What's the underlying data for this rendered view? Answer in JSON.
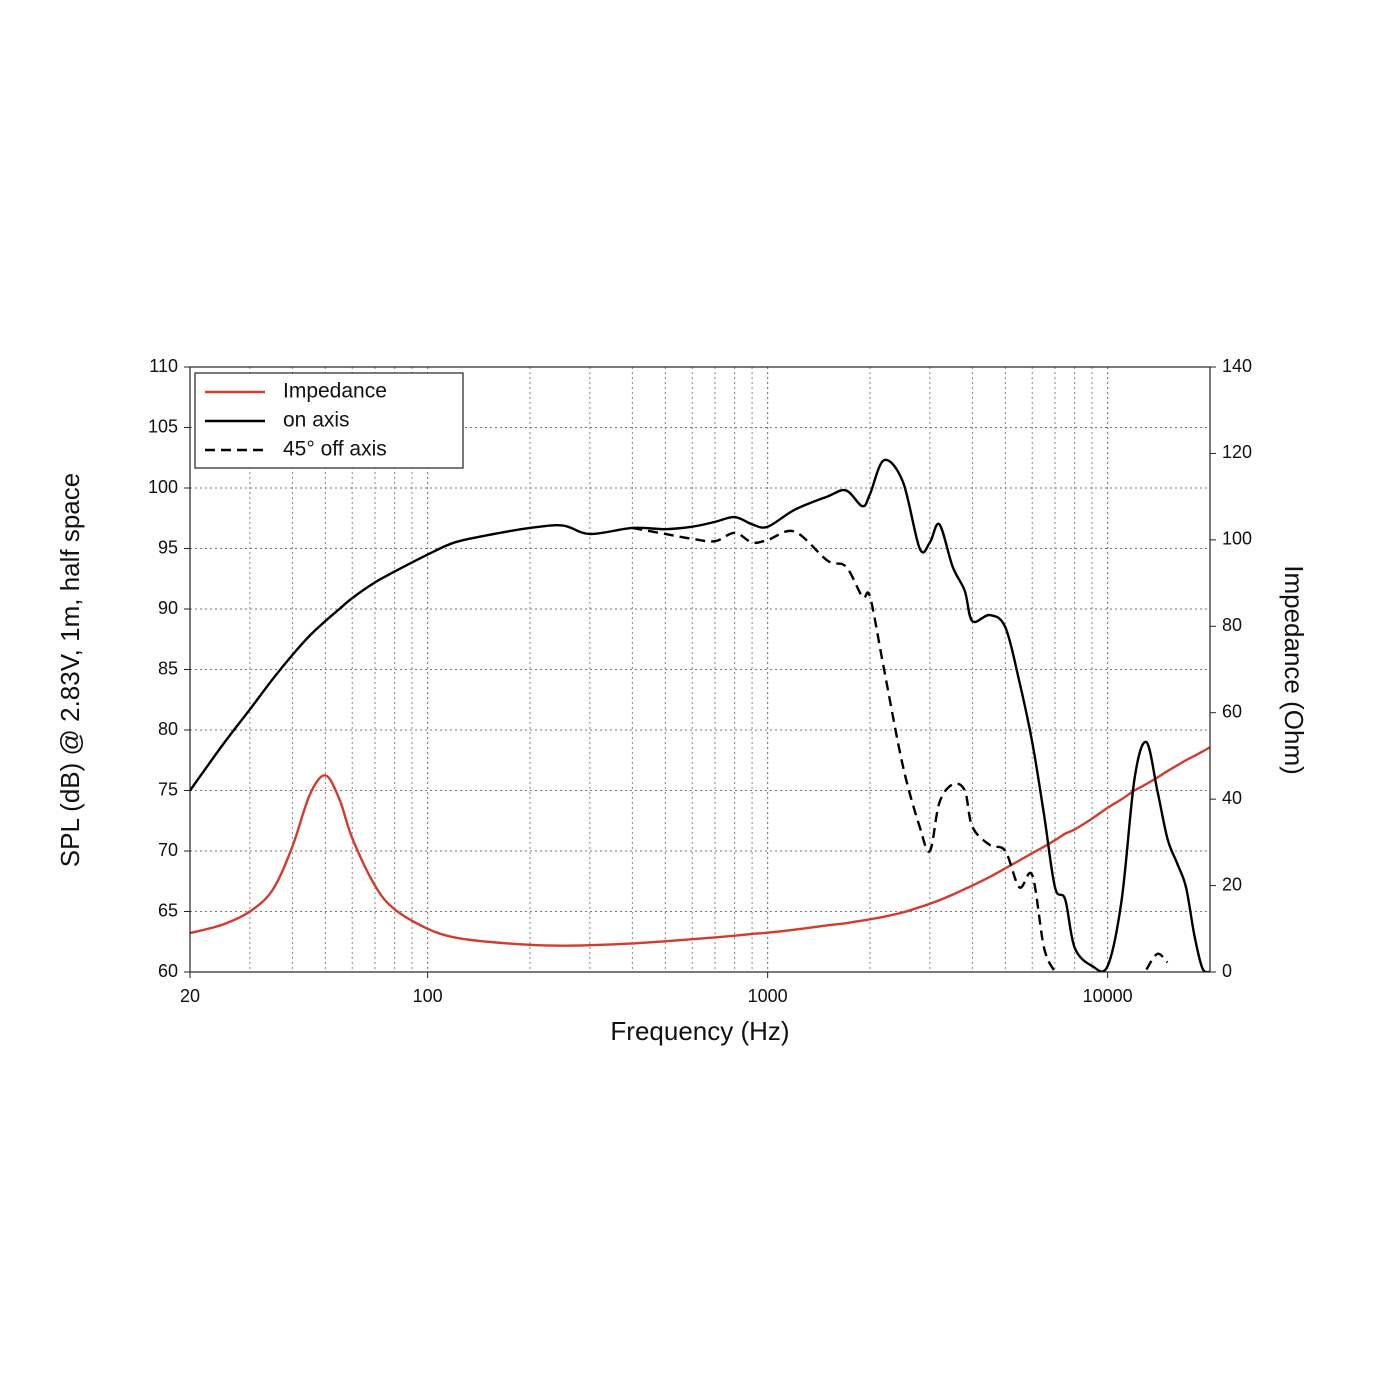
{
  "chart_data": {
    "type": "line",
    "xlabel": "Frequency (Hz)",
    "ylabel": "SPL (dB) @ 2.83V, 1m, half space",
    "y2label": "Impedance (Ohm)",
    "xscale": "log",
    "xlim": [
      20,
      20000
    ],
    "xticks": [
      20,
      100,
      1000,
      10000
    ],
    "ylim": [
      60,
      110
    ],
    "yticks": [
      60,
      65,
      70,
      75,
      80,
      85,
      90,
      95,
      100,
      105,
      110
    ],
    "y2lim": [
      0,
      140
    ],
    "y2ticks": [
      0,
      20,
      40,
      60,
      80,
      100,
      120,
      140
    ],
    "grid": true,
    "minor_grid": true,
    "legend": "upper left",
    "x": [
      20,
      25,
      30,
      35,
      40,
      45,
      50,
      55,
      60,
      70,
      80,
      100,
      120,
      150,
      200,
      250,
      300,
      400,
      500,
      600,
      700,
      800,
      900,
      1000,
      1200,
      1500,
      1700,
      1900,
      2000,
      2200,
      2500,
      2800,
      3000,
      3200,
      3500,
      3800,
      4000,
      4500,
      5000,
      5500,
      6000,
      6500,
      7000,
      7500,
      8000,
      9000,
      10000,
      11000,
      12000,
      13000,
      14000,
      15000,
      16000,
      17000,
      18000,
      19000,
      20000
    ],
    "series": [
      {
        "name": "Impedance",
        "color": "#d23c2c",
        "style": "solid",
        "axis": "y2",
        "values": [
          9,
          11,
          14,
          19,
          29,
          41,
          45.5,
          40,
          31,
          20,
          14.5,
          10,
          8,
          7,
          6.3,
          6.1,
          6.2,
          6.6,
          7.1,
          7.6,
          8,
          8.4,
          8.8,
          9.1,
          9.8,
          10.8,
          11.3,
          11.9,
          12.2,
          12.8,
          13.8,
          15,
          15.8,
          16.6,
          17.9,
          19.2,
          20,
          22,
          24,
          25.8,
          27.5,
          29,
          30.5,
          32,
          33,
          35.5,
          38,
          40,
          42,
          43.5,
          45,
          46.5,
          47.8,
          49,
          50,
          51,
          52
        ]
      },
      {
        "name": "on axis",
        "color": "#000000",
        "style": "solid",
        "values": [
          75,
          78.8,
          81.7,
          84.2,
          86.2,
          87.8,
          89,
          90,
          90.9,
          92.2,
          93.1,
          94.5,
          95.5,
          96.1,
          96.7,
          96.9,
          96.2,
          96.7,
          96.6,
          96.8,
          97.2,
          97.6,
          97,
          96.8,
          98.2,
          99.3,
          99.8,
          98.5,
          99.5,
          102.3,
          100.5,
          95,
          95.5,
          97,
          93.5,
          91.5,
          89,
          89.5,
          88.5,
          84,
          79,
          73,
          67,
          66,
          62,
          60.5,
          60.5,
          66,
          76,
          79,
          75,
          71,
          69,
          67,
          63,
          60.3,
          60
        ]
      },
      {
        "name": "45° off axis",
        "color": "#000000",
        "style": "dashed",
        "values": [
          null,
          null,
          null,
          null,
          null,
          null,
          null,
          null,
          null,
          null,
          null,
          null,
          null,
          null,
          null,
          null,
          null,
          96.7,
          96.2,
          95.8,
          95.6,
          96.3,
          95.5,
          95.7,
          96.4,
          94,
          93.5,
          91,
          91,
          85,
          77,
          72,
          70,
          74,
          75.5,
          75,
          72,
          70.5,
          70,
          67,
          68,
          62,
          60,
          null,
          null,
          null,
          null,
          null,
          null,
          60.2,
          61.5,
          60.8,
          null,
          null,
          null,
          null,
          null
        ]
      }
    ]
  }
}
